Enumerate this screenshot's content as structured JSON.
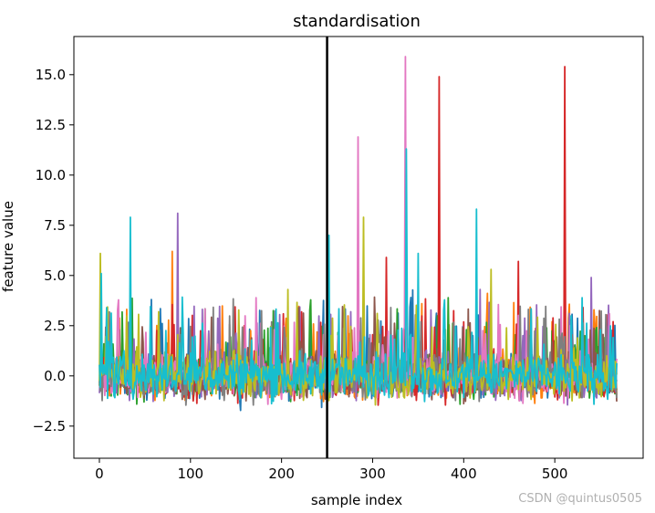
{
  "chart_data": {
    "type": "line",
    "title": "standardisation",
    "xlabel": "sample index",
    "ylabel": "feature value",
    "xlim": [
      -28,
      597
    ],
    "ylim": [
      -4.1,
      16.9
    ],
    "xticks": [
      0,
      100,
      200,
      300,
      400,
      500
    ],
    "yticks": [
      -2.5,
      0.0,
      2.5,
      5.0,
      7.5,
      10.0,
      12.5,
      15.0
    ],
    "ytick_labels": [
      "−2.5",
      "0.0",
      "2.5",
      "5.0",
      "7.5",
      "10.0",
      "12.5",
      "15.0"
    ],
    "n_samples": 569,
    "vertical_line": {
      "x": 250,
      "color": "#000000"
    },
    "grid": false,
    "legend": "none",
    "series_colors": [
      "#1f77b4",
      "#ff7f0e",
      "#2ca02c",
      "#d62728",
      "#9467bd",
      "#8c564b",
      "#e377c2",
      "#7f7f7f",
      "#bcbd22",
      "#17becf"
    ],
    "peaks": [
      {
        "x": 1,
        "y": 6.1,
        "series": 8
      },
      {
        "x": 2,
        "y": 5.1,
        "series": 9
      },
      {
        "x": 34,
        "y": 7.9,
        "series": 9
      },
      {
        "x": 80,
        "y": 6.2,
        "series": 1
      },
      {
        "x": 86,
        "y": 8.1,
        "series": 4
      },
      {
        "x": 252,
        "y": 7.0,
        "series": 9
      },
      {
        "x": 284,
        "y": 11.9,
        "series": 6
      },
      {
        "x": 290,
        "y": 7.9,
        "series": 8
      },
      {
        "x": 336,
        "y": 15.9,
        "series": 6
      },
      {
        "x": 337,
        "y": 11.3,
        "series": 9
      },
      {
        "x": 373,
        "y": 14.9,
        "series": 3
      },
      {
        "x": 414,
        "y": 8.3,
        "series": 9
      },
      {
        "x": 511,
        "y": 15.4,
        "series": 3
      },
      {
        "x": 315,
        "y": 5.9,
        "series": 3
      },
      {
        "x": 430,
        "y": 5.3,
        "series": 8
      },
      {
        "x": 460,
        "y": 5.7,
        "series": 3
      },
      {
        "x": 540,
        "y": 4.9,
        "series": 4
      },
      {
        "x": 350,
        "y": 6.1,
        "series": 9
      }
    ]
  },
  "watermark": "CSDN @quintus0505"
}
